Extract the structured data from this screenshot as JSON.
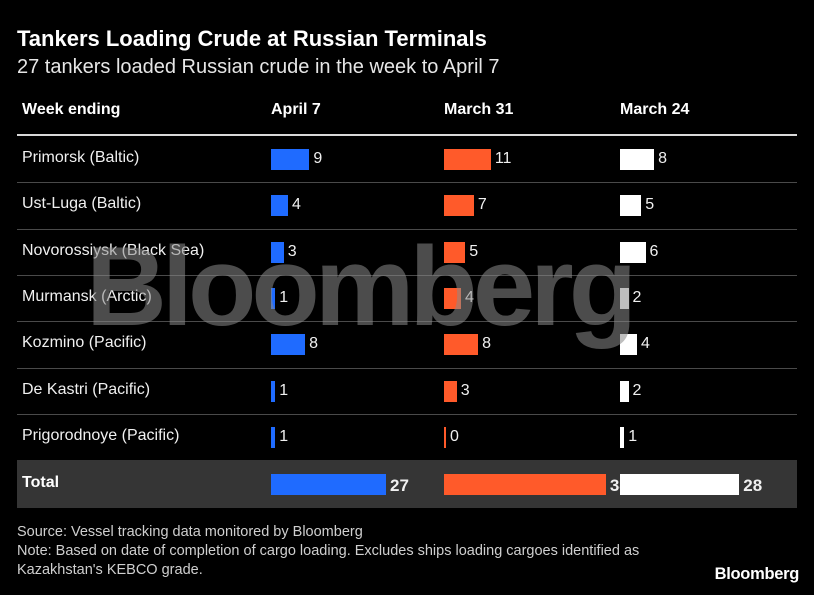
{
  "title": "Tankers Loading Crude at Russian Terminals",
  "subtitle": "27 tankers loaded Russian crude in the week to April 7",
  "watermark": "Bloomberg",
  "logo": "Bloomberg",
  "source": "Source: Vessel tracking data monitored by Bloomberg",
  "note": "Note: Based on date of completion of cargo loading. Excludes ships loading cargoes identified as Kazakhstan's KEBCO grade.",
  "colors": {
    "april7": "#1f6bff",
    "march31": "#ff5a2a",
    "march24": "#ffffff"
  },
  "chart_data": {
    "type": "table",
    "header": "Week ending",
    "columns": [
      "April 7",
      "March 31",
      "March 24"
    ],
    "rows": [
      {
        "label": "Primorsk (Baltic)",
        "values": [
          9,
          11,
          8
        ]
      },
      {
        "label": "Ust-Luga (Baltic)",
        "values": [
          4,
          7,
          5
        ]
      },
      {
        "label": "Novorossiysk (Black Sea)",
        "values": [
          3,
          5,
          6
        ]
      },
      {
        "label": "Murmansk (Arctic)",
        "values": [
          1,
          4,
          2
        ]
      },
      {
        "label": "Kozmino (Pacific)",
        "values": [
          8,
          8,
          4
        ]
      },
      {
        "label": "De Kastri (Pacific)",
        "values": [
          1,
          3,
          2
        ]
      },
      {
        "label": "Prigorodnoye (Pacific)",
        "values": [
          1,
          0,
          1
        ]
      }
    ],
    "total": {
      "label": "Total",
      "values": [
        27,
        38,
        28
      ]
    }
  }
}
